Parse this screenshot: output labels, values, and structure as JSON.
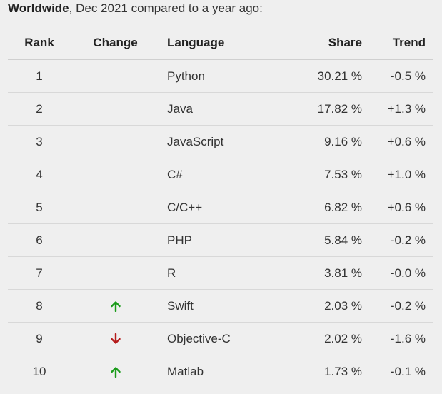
{
  "caption": {
    "bold": "Worldwide",
    "rest": ", Dec 2021 compared to a year ago:"
  },
  "headers": {
    "rank": "Rank",
    "change": "Change",
    "language": "Language",
    "share": "Share",
    "trend": "Trend"
  },
  "colors": {
    "up": "#1a9b1a",
    "down": "#b51c1c"
  },
  "rows": [
    {
      "rank": "1",
      "change": "",
      "language": "Python",
      "share": "30.21 %",
      "trend": "-0.5 %"
    },
    {
      "rank": "2",
      "change": "",
      "language": "Java",
      "share": "17.82 %",
      "trend": "+1.3 %"
    },
    {
      "rank": "3",
      "change": "",
      "language": "JavaScript",
      "share": "9.16 %",
      "trend": "+0.6 %"
    },
    {
      "rank": "4",
      "change": "",
      "language": "C#",
      "share": "7.53 %",
      "trend": "+1.0 %"
    },
    {
      "rank": "5",
      "change": "",
      "language": "C/C++",
      "share": "6.82 %",
      "trend": "+0.6 %"
    },
    {
      "rank": "6",
      "change": "",
      "language": "PHP",
      "share": "5.84 %",
      "trend": "-0.2 %"
    },
    {
      "rank": "7",
      "change": "",
      "language": "R",
      "share": "3.81 %",
      "trend": "-0.0 %"
    },
    {
      "rank": "8",
      "change": "up-arrow-icon",
      "language": "Swift",
      "share": "2.03 %",
      "trend": "-0.2 %"
    },
    {
      "rank": "9",
      "change": "down-arrow-icon",
      "language": "Objective-C",
      "share": "2.02 %",
      "trend": "-1.6 %"
    },
    {
      "rank": "10",
      "change": "up-arrow-icon",
      "language": "Matlab",
      "share": "1.73 %",
      "trend": "-0.1 %"
    }
  ]
}
